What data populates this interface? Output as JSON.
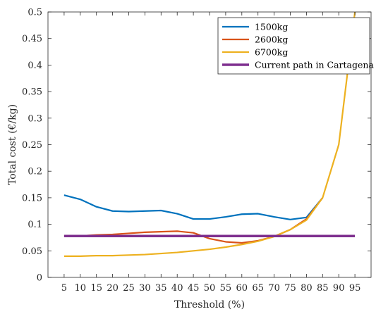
{
  "chart_data": {
    "type": "line",
    "xlabel": "Threshold (%)",
    "ylabel": "Total cost (€/kg)",
    "x": [
      5,
      10,
      15,
      20,
      25,
      30,
      35,
      40,
      45,
      50,
      55,
      60,
      65,
      70,
      75,
      80,
      85,
      90,
      95
    ],
    "xlim": [
      0,
      100
    ],
    "ylim": [
      0,
      0.5
    ],
    "xticks": [
      "5",
      "10",
      "15",
      "20",
      "25",
      "30",
      "35",
      "40",
      "45",
      "50",
      "55",
      "60",
      "65",
      "70",
      "75",
      "80",
      "85",
      "90",
      "95"
    ],
    "yticks": [
      "0",
      "0.05",
      "0.1",
      "0.15",
      "0.2",
      "0.25",
      "0.3",
      "0.35",
      "0.4",
      "0.45",
      "0.5"
    ],
    "grid": false,
    "legend_position": "top-right",
    "series": [
      {
        "name": "1500kg",
        "color": "#0072BD",
        "values": [
          0.155,
          0.147,
          0.133,
          0.125,
          0.124,
          0.125,
          0.126,
          0.12,
          0.11,
          0.11,
          0.114,
          0.119,
          0.12,
          0.114,
          0.109,
          0.113,
          0.15,
          null,
          null
        ]
      },
      {
        "name": "2600kg",
        "color": "#D95319",
        "values": [
          0.078,
          0.078,
          0.08,
          0.081,
          0.083,
          0.085,
          0.086,
          0.087,
          0.084,
          0.073,
          0.067,
          0.065,
          0.069,
          0.077,
          0.09,
          0.11,
          0.15,
          null,
          null
        ]
      },
      {
        "name": "6700kg",
        "color": "#EDB120",
        "values": [
          0.04,
          0.04,
          0.041,
          0.041,
          0.042,
          0.043,
          0.045,
          0.047,
          0.05,
          0.053,
          0.057,
          0.062,
          0.068,
          0.077,
          0.09,
          0.108,
          0.15,
          0.25,
          0.5
        ]
      },
      {
        "name": "Current path in Cartagena",
        "color": "#7E2F8E",
        "values": [
          0.078,
          0.078,
          0.078,
          0.078,
          0.078,
          0.078,
          0.078,
          0.078,
          0.078,
          0.078,
          0.078,
          0.078,
          0.078,
          0.078,
          0.078,
          0.078,
          0.078,
          0.078,
          0.078
        ],
        "thick": true
      }
    ]
  }
}
